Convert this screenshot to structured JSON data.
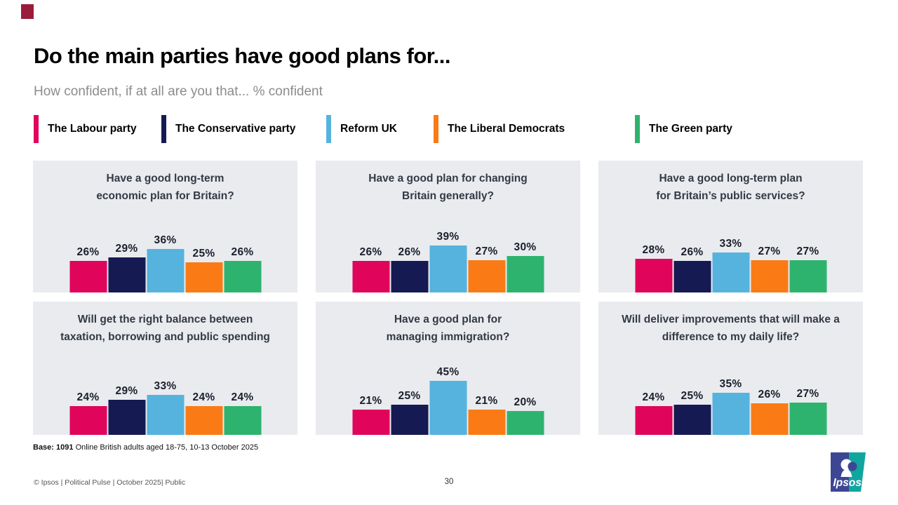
{
  "slide": {
    "title": "Do the main parties have good plans for...",
    "subtitle": "How confident, if at all are you that... % confident",
    "base_label": "Base: 1091",
    "base_text": "Online British adults aged 18-75, 10-13 October 2025",
    "footer_left": "© Ipsos | Political Pulse | October 2025| Public",
    "page_number": "30",
    "logo_text": "Ipsos"
  },
  "colors": {
    "panel_background": "#E9EBEF",
    "brand_square": "#9A1C3C",
    "logo_blue": "#3D4693",
    "logo_teal": "#11A5A0",
    "value_label": "#1A1F2B"
  },
  "legend": {
    "items": [
      {
        "label": "The Labour party",
        "color": "#E0045B"
      },
      {
        "label": "The Conservative party",
        "color": "#161A52"
      },
      {
        "label": "Reform UK",
        "color": "#55B3DE"
      },
      {
        "label": "The Liberal Democrats",
        "color": "#FA7B15"
      },
      {
        "label": "The Green party",
        "color": "#2EB36F"
      }
    ]
  },
  "chart_data": [
    {
      "type": "bar",
      "title": "Have a good long-term economic plan for Britain?",
      "title_lines": [
        "Have a good long-term",
        "economic plan for Britain?"
      ],
      "categories": [
        "The Labour party",
        "The Conservative party",
        "Reform UK",
        "The Liberal Democrats",
        "The Green party"
      ],
      "values": [
        26,
        29,
        36,
        25,
        26
      ],
      "unit": "%",
      "ylim": [
        0,
        50
      ],
      "value_labels_shown": true
    },
    {
      "type": "bar",
      "title": "Have a good plan for changing Britain generally?",
      "title_lines": [
        "Have a good plan for changing",
        "Britain generally?"
      ],
      "categories": [
        "The Labour party",
        "The Conservative party",
        "Reform UK",
        "The Liberal Democrats",
        "The Green party"
      ],
      "values": [
        26,
        26,
        39,
        27,
        30
      ],
      "unit": "%",
      "ylim": [
        0,
        50
      ],
      "value_labels_shown": true
    },
    {
      "type": "bar",
      "title": "Have a good long-term plan for Britain’s public services?",
      "title_lines": [
        "Have a good long-term plan",
        "for Britain’s public services?"
      ],
      "categories": [
        "The Labour party",
        "The Conservative party",
        "Reform UK",
        "The Liberal Democrats",
        "The Green party"
      ],
      "values": [
        28,
        26,
        33,
        27,
        27
      ],
      "unit": "%",
      "ylim": [
        0,
        50
      ],
      "value_labels_shown": true
    },
    {
      "type": "bar",
      "title": "Will get the right balance between taxation, borrowing and public spending",
      "title_lines": [
        "Will get the right balance between",
        "taxation, borrowing and public spending"
      ],
      "categories": [
        "The Labour party",
        "The Conservative party",
        "Reform UK",
        "The Liberal Democrats",
        "The Green party"
      ],
      "values": [
        24,
        29,
        33,
        24,
        24
      ],
      "unit": "%",
      "ylim": [
        0,
        50
      ],
      "value_labels_shown": true
    },
    {
      "type": "bar",
      "title": "Have a good plan for managing immigration?",
      "title_lines": [
        "Have a good plan for",
        "managing immigration?"
      ],
      "categories": [
        "The Labour party",
        "The Conservative party",
        "Reform UK",
        "The Liberal Democrats",
        "The Green party"
      ],
      "values": [
        21,
        25,
        45,
        21,
        20
      ],
      "unit": "%",
      "ylim": [
        0,
        50
      ],
      "value_labels_shown": true
    },
    {
      "type": "bar",
      "title": "Will deliver improvements that will make a difference to my daily life?",
      "title_lines": [
        "Will deliver improvements that will make a",
        "difference to my daily life?"
      ],
      "categories": [
        "The Labour party",
        "The Conservative party",
        "Reform UK",
        "The Liberal Democrats",
        "The Green party"
      ],
      "values": [
        24,
        25,
        35,
        26,
        27
      ],
      "unit": "%",
      "ylim": [
        0,
        50
      ],
      "value_labels_shown": true
    }
  ]
}
